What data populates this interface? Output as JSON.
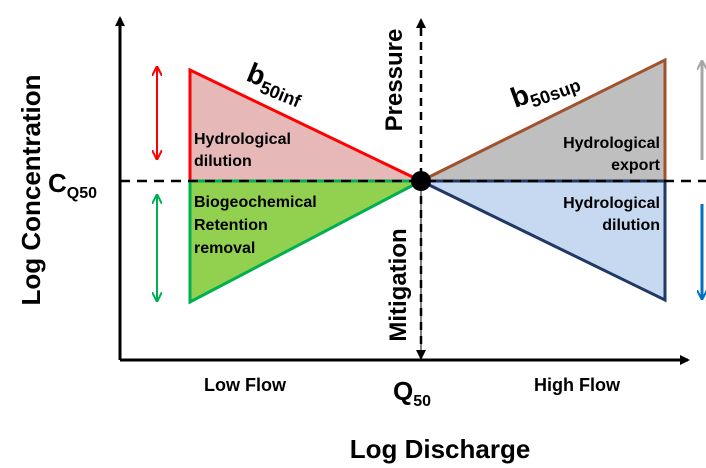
{
  "axes": {
    "y_label": "Log Concentration",
    "x_label": "Log Discharge",
    "x_left": "Low Flow",
    "x_right": "High Flow"
  },
  "q50": {
    "main": "Q",
    "sub": "50"
  },
  "cq50": {
    "main": "C",
    "sub": "Q50"
  },
  "b50inf": {
    "main": "b",
    "sub": "50inf"
  },
  "b50sup": {
    "main": "b",
    "sub": "50sup"
  },
  "pressure": "Pressure",
  "mitigation": "Mitigation",
  "regions": {
    "left_top": [
      "Hydrological",
      "dilution"
    ],
    "left_bottom": [
      "Biogeochemical",
      "Retention",
      "removal"
    ],
    "right_top": [
      "Hydrological",
      "export"
    ],
    "right_bottom": [
      "Hydrological",
      "dilution"
    ]
  }
}
